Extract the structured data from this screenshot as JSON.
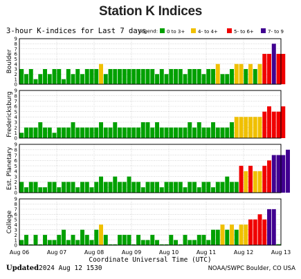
{
  "page_title": "Station K Indices",
  "header": {
    "subtitle": "3-hour K-indices for Last 7 days",
    "legend_label": "Legend:"
  },
  "legend": [
    {
      "label": "0 to 3+",
      "color": "#00a000"
    },
    {
      "label": "4- to 4+",
      "color": "#f0c000"
    },
    {
      "label": "5- to 6+",
      "color": "#f00000"
    },
    {
      "label": "7- to 9",
      "color": "#400090"
    }
  ],
  "footer": {
    "xlabel": "Coordinate Universal Time (UTC)",
    "updated_label": "Updated",
    "updated_value": "2024 Aug 12 1530",
    "credit": "NOAA/SWPC Boulder, CO USA"
  },
  "chart_data": [
    {
      "type": "bar",
      "title": "Boulder",
      "x_labels": [
        "Aug 06",
        "Aug 07",
        "Aug 08",
        "Aug 09",
        "Aug 10",
        "Aug 11",
        "Aug 12",
        "Aug 13"
      ],
      "yticks": [
        "0",
        "1",
        "2",
        "3",
        "4",
        "5",
        "6",
        "7",
        "8",
        "9"
      ],
      "ylim": [
        0,
        9
      ],
      "values": [
        3,
        2,
        3,
        1,
        2,
        3,
        2,
        3,
        3,
        1,
        3,
        2,
        3,
        2,
        3,
        3,
        3,
        4,
        2,
        3,
        3,
        3,
        3,
        3,
        3,
        3,
        3,
        3,
        3,
        2,
        3,
        2,
        3,
        3,
        3,
        2,
        3,
        3,
        3,
        2,
        3,
        3,
        4,
        2,
        2,
        3,
        4,
        4,
        3,
        4,
        3,
        4,
        6,
        6,
        8,
        6,
        6
      ]
    },
    {
      "type": "bar",
      "title": "Fredericksburg",
      "x_labels": [
        "Aug 06",
        "Aug 07",
        "Aug 08",
        "Aug 09",
        "Aug 10",
        "Aug 11",
        "Aug 12",
        "Aug 13"
      ],
      "yticks": [
        "0",
        "1",
        "2",
        "3",
        "4",
        "5",
        "6",
        "7",
        "8",
        "9"
      ],
      "ylim": [
        0,
        9
      ],
      "values": [
        1,
        2,
        2,
        2,
        3,
        2,
        2,
        1,
        2,
        2,
        2,
        3,
        2,
        2,
        2,
        2,
        2,
        3,
        2,
        2,
        3,
        2,
        2,
        2,
        2,
        2,
        3,
        3,
        2,
        3,
        2,
        2,
        2,
        2,
        2,
        2,
        3,
        2,
        3,
        2,
        2,
        3,
        2,
        2,
        2,
        3,
        4,
        4,
        4,
        4,
        4,
        4,
        5,
        6,
        5,
        5,
        6
      ]
    },
    {
      "type": "bar",
      "title": "Est. Planetary",
      "x_labels": [
        "Aug 06",
        "Aug 07",
        "Aug 08",
        "Aug 09",
        "Aug 10",
        "Aug 11",
        "Aug 12",
        "Aug 13"
      ],
      "yticks": [
        "0",
        "1",
        "2",
        "3",
        "4",
        "5",
        "6",
        "7",
        "8",
        "9"
      ],
      "ylim": [
        0,
        9
      ],
      "values": [
        2,
        1,
        2,
        2,
        1,
        1,
        2,
        2,
        1,
        2,
        2,
        2,
        1,
        2,
        2,
        1,
        2,
        3,
        2,
        2,
        3,
        2,
        2,
        3,
        2,
        2,
        1,
        2,
        2,
        2,
        1,
        2,
        2,
        2,
        2,
        1,
        2,
        2,
        1,
        2,
        2,
        1,
        2,
        2,
        3,
        2,
        2,
        5,
        4,
        5,
        4,
        4,
        5,
        6,
        7,
        7,
        7,
        8
      ]
    },
    {
      "type": "bar",
      "title": "College",
      "x_labels": [
        "Aug 06",
        "Aug 07",
        "Aug 08",
        "Aug 09",
        "Aug 10",
        "Aug 11",
        "Aug 12",
        "Aug 13"
      ],
      "yticks": [
        "0",
        "1",
        "2",
        "3",
        "4",
        "5",
        "6",
        "7",
        "8",
        "9"
      ],
      "ylim": [
        0,
        9
      ],
      "values": [
        1,
        2,
        0,
        2,
        0,
        2,
        1,
        1,
        2,
        3,
        1,
        2,
        1,
        3,
        2,
        1,
        3,
        4,
        2,
        0,
        0,
        2,
        2,
        2,
        0,
        2,
        1,
        1,
        2,
        1,
        0,
        0,
        2,
        1,
        0,
        2,
        1,
        1,
        2,
        2,
        1,
        3,
        3,
        4,
        3,
        4,
        3,
        4,
        4,
        5,
        5,
        6,
        5,
        7,
        7
      ]
    }
  ]
}
